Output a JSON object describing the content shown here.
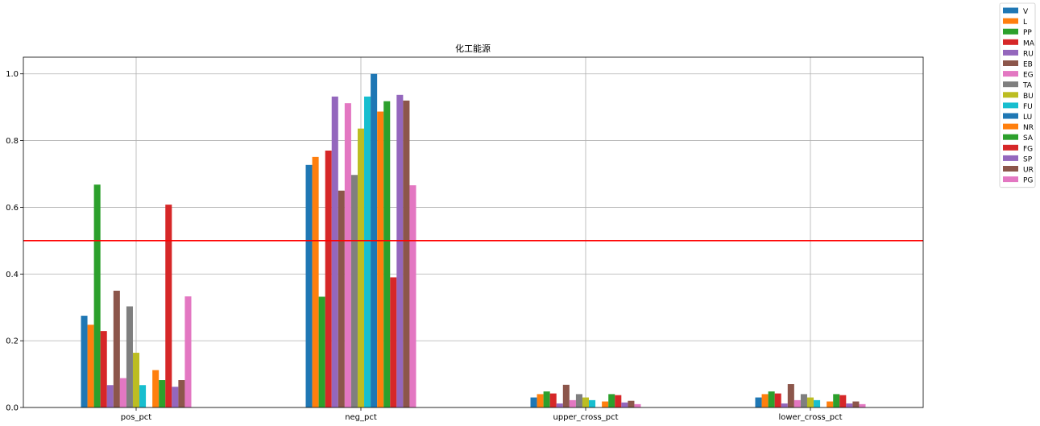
{
  "chart_data": {
    "type": "bar",
    "title": "化工能源",
    "categories": [
      "pos_pct",
      "neg_pct",
      "upper_cross_pct",
      "lower_cross_pct"
    ],
    "ylim": [
      0,
      1.05
    ],
    "yticks": [
      "0.0",
      "0.2",
      "0.4",
      "0.6",
      "0.8",
      "1.0"
    ],
    "ytick_values": [
      0,
      0.2,
      0.4,
      0.6,
      0.8,
      1.0
    ],
    "grid": true,
    "hline": {
      "y": 0.5,
      "color": "#ff0000"
    },
    "legend_position": "outside-top-right",
    "series": [
      {
        "name": "V",
        "color": "#1f77b4",
        "values": [
          0.275,
          0.727,
          0.03,
          0.03
        ]
      },
      {
        "name": "L",
        "color": "#ff7f0e",
        "values": [
          0.248,
          0.751,
          0.04,
          0.04
        ]
      },
      {
        "name": "PP",
        "color": "#2ca02c",
        "values": [
          0.668,
          0.332,
          0.048,
          0.048
        ]
      },
      {
        "name": "MA",
        "color": "#d62728",
        "values": [
          0.229,
          0.77,
          0.042,
          0.042
        ]
      },
      {
        "name": "RU",
        "color": "#9467bd",
        "values": [
          0.067,
          0.932,
          0.012,
          0.012
        ]
      },
      {
        "name": "EB",
        "color": "#8c564b",
        "values": [
          0.35,
          0.65,
          0.068,
          0.07
        ]
      },
      {
        "name": "EG",
        "color": "#e377c2",
        "values": [
          0.088,
          0.912,
          0.022,
          0.022
        ]
      },
      {
        "name": "TA",
        "color": "#7f7f7f",
        "values": [
          0.303,
          0.697,
          0.04,
          0.04
        ]
      },
      {
        "name": "BU",
        "color": "#bcbd22",
        "values": [
          0.164,
          0.836,
          0.03,
          0.03
        ]
      },
      {
        "name": "FU",
        "color": "#17becf",
        "values": [
          0.067,
          0.932,
          0.022,
          0.022
        ]
      },
      {
        "name": "LU",
        "color": "#1f77b4",
        "values": [
          0.0,
          1.0,
          0.0,
          0.0
        ]
      },
      {
        "name": "NR",
        "color": "#ff7f0e",
        "values": [
          0.112,
          0.887,
          0.018,
          0.018
        ]
      },
      {
        "name": "SA",
        "color": "#2ca02c",
        "values": [
          0.082,
          0.918,
          0.04,
          0.04
        ]
      },
      {
        "name": "FG",
        "color": "#d62728",
        "values": [
          0.608,
          0.39,
          0.037,
          0.037
        ]
      },
      {
        "name": "SP",
        "color": "#9467bd",
        "values": [
          0.062,
          0.937,
          0.015,
          0.012
        ]
      },
      {
        "name": "UR",
        "color": "#8c564b",
        "values": [
          0.082,
          0.92,
          0.02,
          0.018
        ]
      },
      {
        "name": "PG",
        "color": "#e377c2",
        "values": [
          0.333,
          0.666,
          0.01,
          0.01
        ]
      }
    ]
  }
}
